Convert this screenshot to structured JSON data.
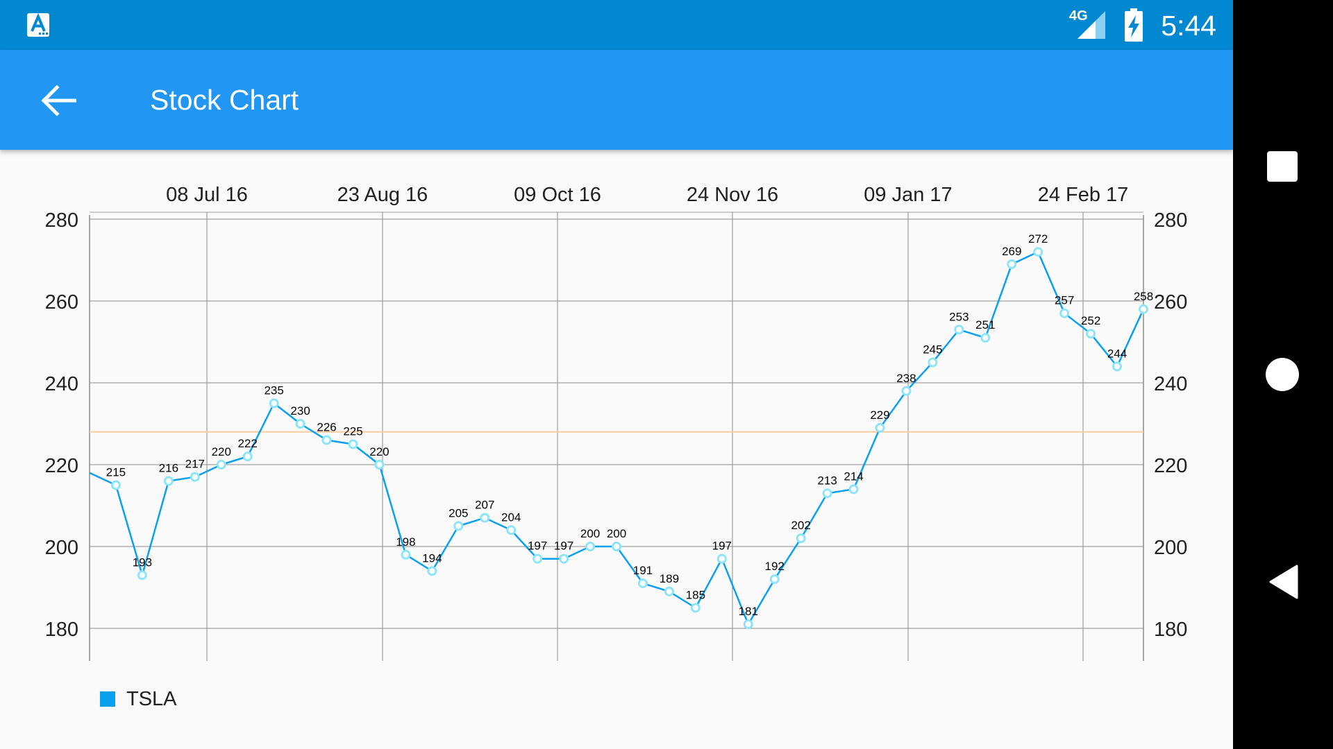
{
  "status_bar": {
    "network": "4G",
    "time": "5:44",
    "app_notification_icon": "app-a-icon",
    "signal_icon": "cell-signal-icon",
    "battery_icon": "battery-charging-icon",
    "background": "#0288D1"
  },
  "app_bar": {
    "title": "Stock Chart",
    "back_icon": "back-arrow-icon",
    "background": "#2196F3"
  },
  "nav_bar": {
    "recents_icon": "square-icon",
    "home_icon": "circle-icon",
    "back_icon": "triangle-back-icon"
  },
  "chart_data": {
    "type": "line",
    "title": "",
    "xlabel": "",
    "ylabel": "",
    "x_tick_labels": [
      "08 Jul 16",
      "23 Aug 16",
      "09 Oct 16",
      "24 Nov 16",
      "09 Jan 17",
      "24 Feb 17"
    ],
    "y_ticks": [
      180,
      200,
      220,
      240,
      260,
      280
    ],
    "ylim": [
      175,
      280
    ],
    "grid": true,
    "axis_labels_position": "x-top, y-left-and-right",
    "legend_position": "bottom-left",
    "reference_line": {
      "value": 228,
      "color": "#FFCC99"
    },
    "series": [
      {
        "name": "TSLA",
        "color": "#0AA0F0",
        "marker_color": "#8EE4F8",
        "values": [
          218,
          215,
          193,
          216,
          217,
          220,
          222,
          235,
          230,
          226,
          225,
          220,
          198,
          194,
          205,
          207,
          204,
          197,
          197,
          200,
          200,
          191,
          189,
          185,
          197,
          181,
          192,
          202,
          213,
          214,
          229,
          238,
          245,
          253,
          251,
          269,
          272,
          257,
          252,
          244,
          258
        ],
        "labels": [
          "",
          "215",
          "193",
          "216",
          "217",
          "220",
          "222",
          "235",
          "230",
          "226",
          "225",
          "220",
          "198",
          "194",
          "205",
          "207",
          "204",
          "197",
          "197",
          "200",
          "200",
          "191",
          "189",
          "185",
          "197",
          "181",
          "192",
          "202",
          "213",
          "214",
          "229",
          "238",
          "245",
          "253",
          "251",
          "269",
          "272",
          "257",
          "252",
          "244",
          "258"
        ]
      }
    ]
  }
}
